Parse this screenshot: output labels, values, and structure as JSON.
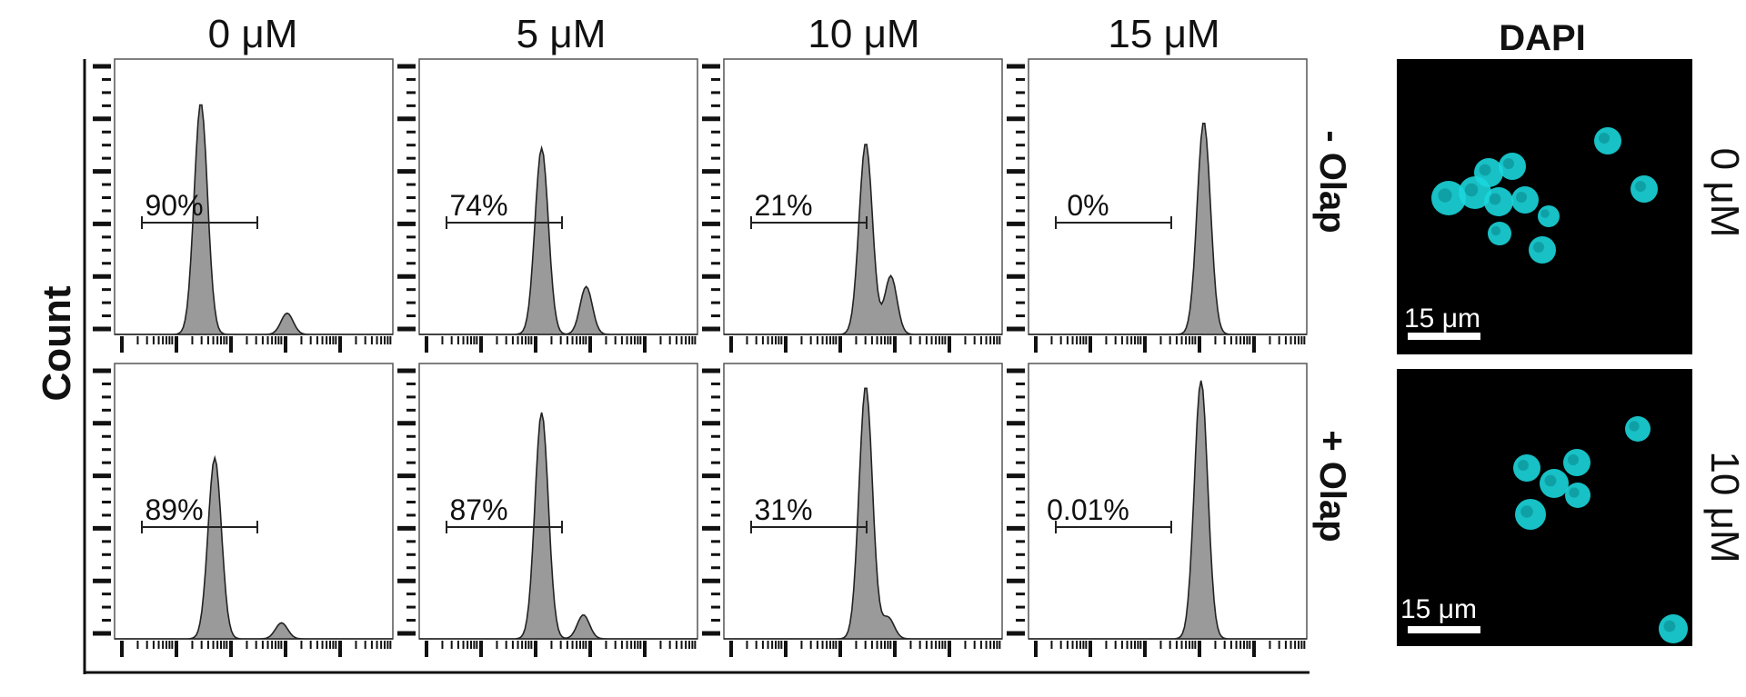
{
  "columns": [
    "0 μM",
    "5 μM",
    "10 μM",
    "15 μM"
  ],
  "rows": [
    "- Olap",
    "+ Olap"
  ],
  "y_axis_label": "Count",
  "x_axis_label": "",
  "gate_percentages": [
    [
      "90%",
      "74%",
      "21%",
      "0%"
    ],
    [
      "89%",
      "87%",
      "31%",
      "0.01%"
    ]
  ],
  "dapi": {
    "title": "DAPI",
    "panels": [
      {
        "concentration": "0 μM",
        "scale_bar": "15 μm"
      },
      {
        "concentration": "10 μM",
        "scale_bar": "15 μm"
      }
    ],
    "nucleus_color": "#19d6dc",
    "background_color": "#000000"
  },
  "chart_data": {
    "type": "histogram-grid",
    "histogram_fill": "#9a9a9a",
    "panels": [
      {
        "row": "- Olap",
        "column": "0 μM",
        "gate": "90%",
        "peaks": [
          {
            "position": 0.31,
            "height": 0.87
          },
          {
            "position": 0.62,
            "height": 0.08
          }
        ]
      },
      {
        "row": "- Olap",
        "column": "5 μM",
        "gate": "74%",
        "peaks": [
          {
            "position": 0.44,
            "height": 0.7
          },
          {
            "position": 0.6,
            "height": 0.18
          }
        ]
      },
      {
        "row": "- Olap",
        "column": "10 μM",
        "gate": "21%",
        "peaks": [
          {
            "position": 0.51,
            "height": 0.72
          },
          {
            "position": 0.6,
            "height": 0.22
          }
        ]
      },
      {
        "row": "- Olap",
        "column": "15 μM",
        "gate": "0%",
        "peaks": [
          {
            "position": 0.63,
            "height": 0.8
          }
        ]
      },
      {
        "row": "+ Olap",
        "column": "0 μM",
        "gate": "89%",
        "peaks": [
          {
            "position": 0.36,
            "height": 0.68
          },
          {
            "position": 0.6,
            "height": 0.06
          }
        ]
      },
      {
        "row": "+ Olap",
        "column": "5 μM",
        "gate": "87%",
        "peaks": [
          {
            "position": 0.44,
            "height": 0.85
          },
          {
            "position": 0.59,
            "height": 0.09
          }
        ]
      },
      {
        "row": "+ Olap",
        "column": "10 μM",
        "gate": "31%",
        "peaks": [
          {
            "position": 0.51,
            "height": 0.95
          },
          {
            "position": 0.59,
            "height": 0.08
          }
        ]
      },
      {
        "row": "+ Olap",
        "column": "15 μM",
        "gate": "0.01%",
        "peaks": [
          {
            "position": 0.62,
            "height": 0.97
          }
        ]
      }
    ]
  }
}
